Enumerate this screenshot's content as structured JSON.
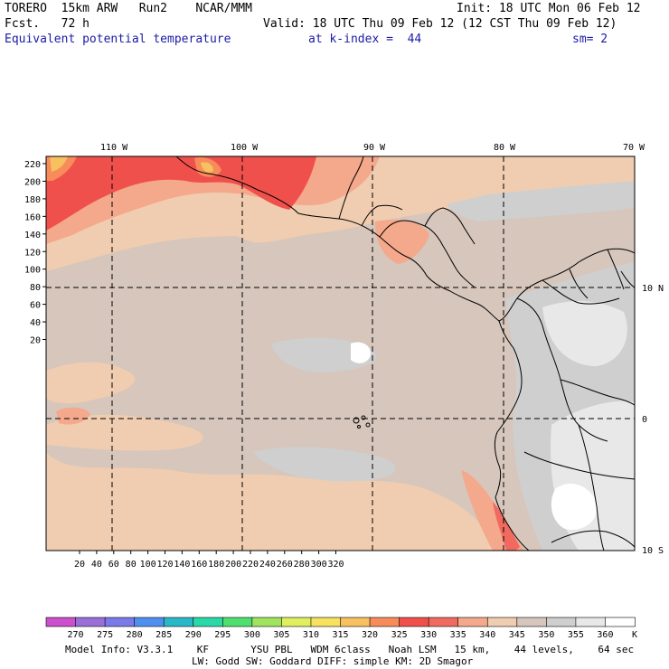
{
  "header": {
    "model_line": "TORERO  15km ARW   Run2    NCAR/MMM",
    "init": "Init: 18 UTC Mon 06 Feb 12",
    "fcst": "Fcst.   72 h",
    "valid": "Valid: 18 UTC Thu 09 Feb 12 (12 CST Thu 09 Feb 12)",
    "field": "Equivalent potential temperature",
    "level": "at k-index =  44",
    "smoothing": "sm= 2"
  },
  "map": {
    "lon_labels": [
      "110 W",
      "100 W",
      "90 W",
      "80 W",
      "70 W"
    ],
    "lat_labels": [
      "10 N",
      "0",
      "10 S"
    ],
    "y_ticks": [
      "220",
      "200",
      "180",
      "160",
      "140",
      "120",
      "100",
      "80",
      "60",
      "40",
      "20"
    ],
    "x_ticks": [
      "20",
      "40",
      "60",
      "80",
      "100",
      "120",
      "140",
      "160",
      "180",
      "200",
      "220",
      "240",
      "260",
      "280",
      "300",
      "320"
    ]
  },
  "colorbar": {
    "labels": [
      "270",
      "275",
      "280",
      "285",
      "290",
      "295",
      "300",
      "305",
      "310",
      "315",
      "320",
      "325",
      "330",
      "335",
      "340",
      "345",
      "350",
      "355",
      "360"
    ],
    "unit": "K",
    "colors": [
      "#cc4fcc",
      "#9a6fd8",
      "#7a7ae8",
      "#4f8ff0",
      "#2ab8c8",
      "#2ad8a8",
      "#4fdf6f",
      "#9fe35f",
      "#dfef5f",
      "#f7e15f",
      "#f7c060",
      "#f78c5a",
      "#f0504c",
      "#f06a60",
      "#f4a88c",
      "#f0cdb0",
      "#d6c6bc",
      "#cfcfcf",
      "#e8e8e8",
      "#ffffff"
    ]
  },
  "footer": {
    "line1": "Model Info: V3.3.1    KF       YSU PBL   WDM 6class   Noah LSM   15 km,    44 levels,    64 sec",
    "line2": "LW: Godd SW: Goddard DIFF: simple KM: 2D Smagor"
  }
}
